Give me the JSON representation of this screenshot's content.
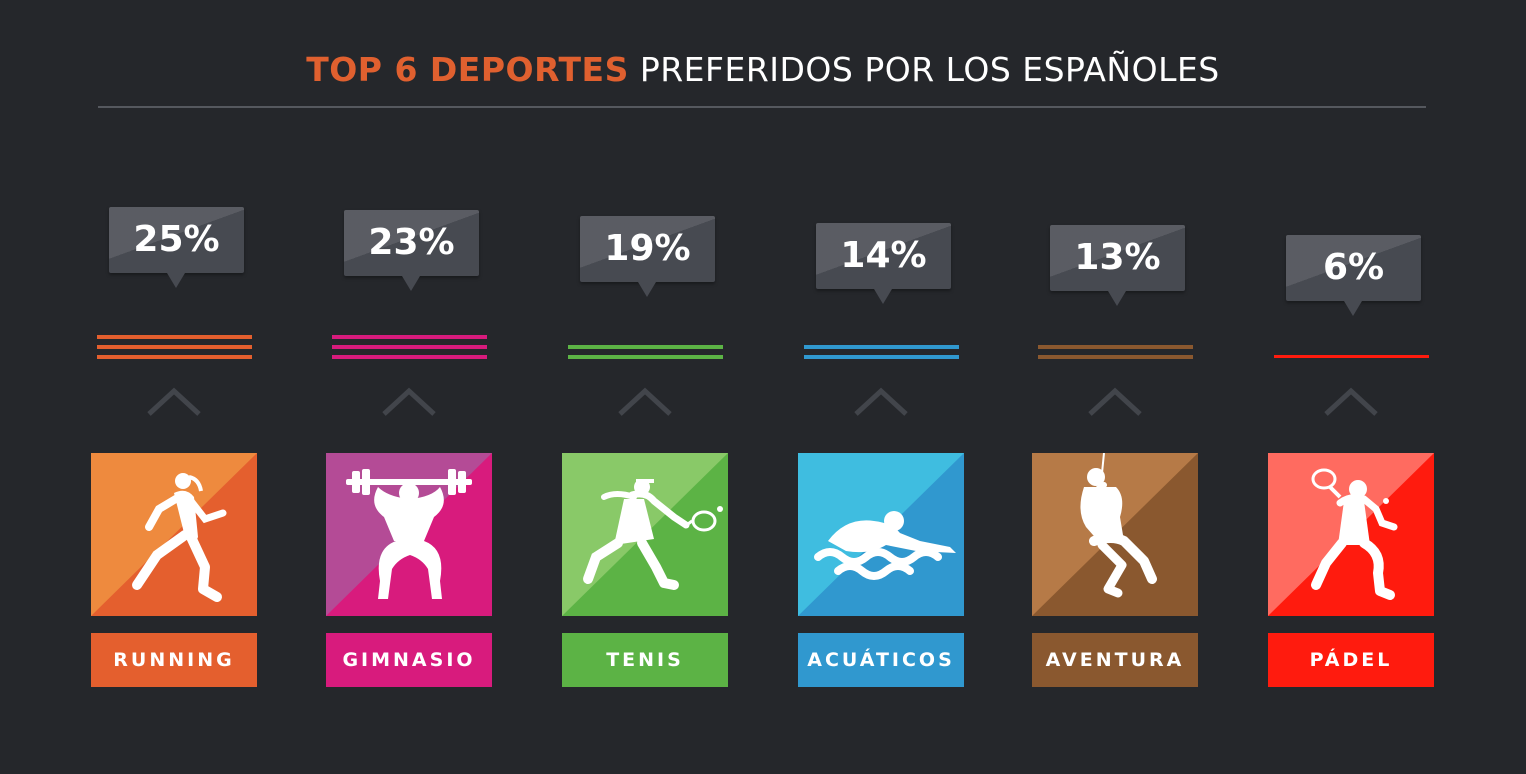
{
  "header": {
    "title_accent": "TOP 6 DEPORTES",
    "title_rest": "PREFERIDOS POR LOS ESPAÑOLES"
  },
  "chart_data": {
    "type": "bar",
    "title": "TOP 6 DEPORTES PREFERIDOS POR LOS ESPAÑOLES",
    "categories": [
      "RUNNING",
      "GIMNASIO",
      "TENIS",
      "ACUÁTICOS",
      "AVENTURA",
      "PÁDEL"
    ],
    "values": [
      25,
      23,
      19,
      14,
      13,
      6
    ],
    "value_labels": [
      "25%",
      "23%",
      "19%",
      "14%",
      "13%",
      "6%"
    ],
    "unit": "%",
    "colors": [
      "#e45f2e",
      "#d81b7d",
      "#5cb345",
      "#3098cf",
      "#8a582f",
      "#ff1b0e"
    ],
    "light_colors": [
      "#ee8a3e",
      "#b44b96",
      "#89c968",
      "#3fbde0",
      "#b67a47",
      "#ff6b60"
    ],
    "icons": [
      "runner-icon",
      "weightlifter-icon",
      "tennis-player-icon",
      "swimmer-icon",
      "climber-icon",
      "padel-player-icon"
    ]
  }
}
